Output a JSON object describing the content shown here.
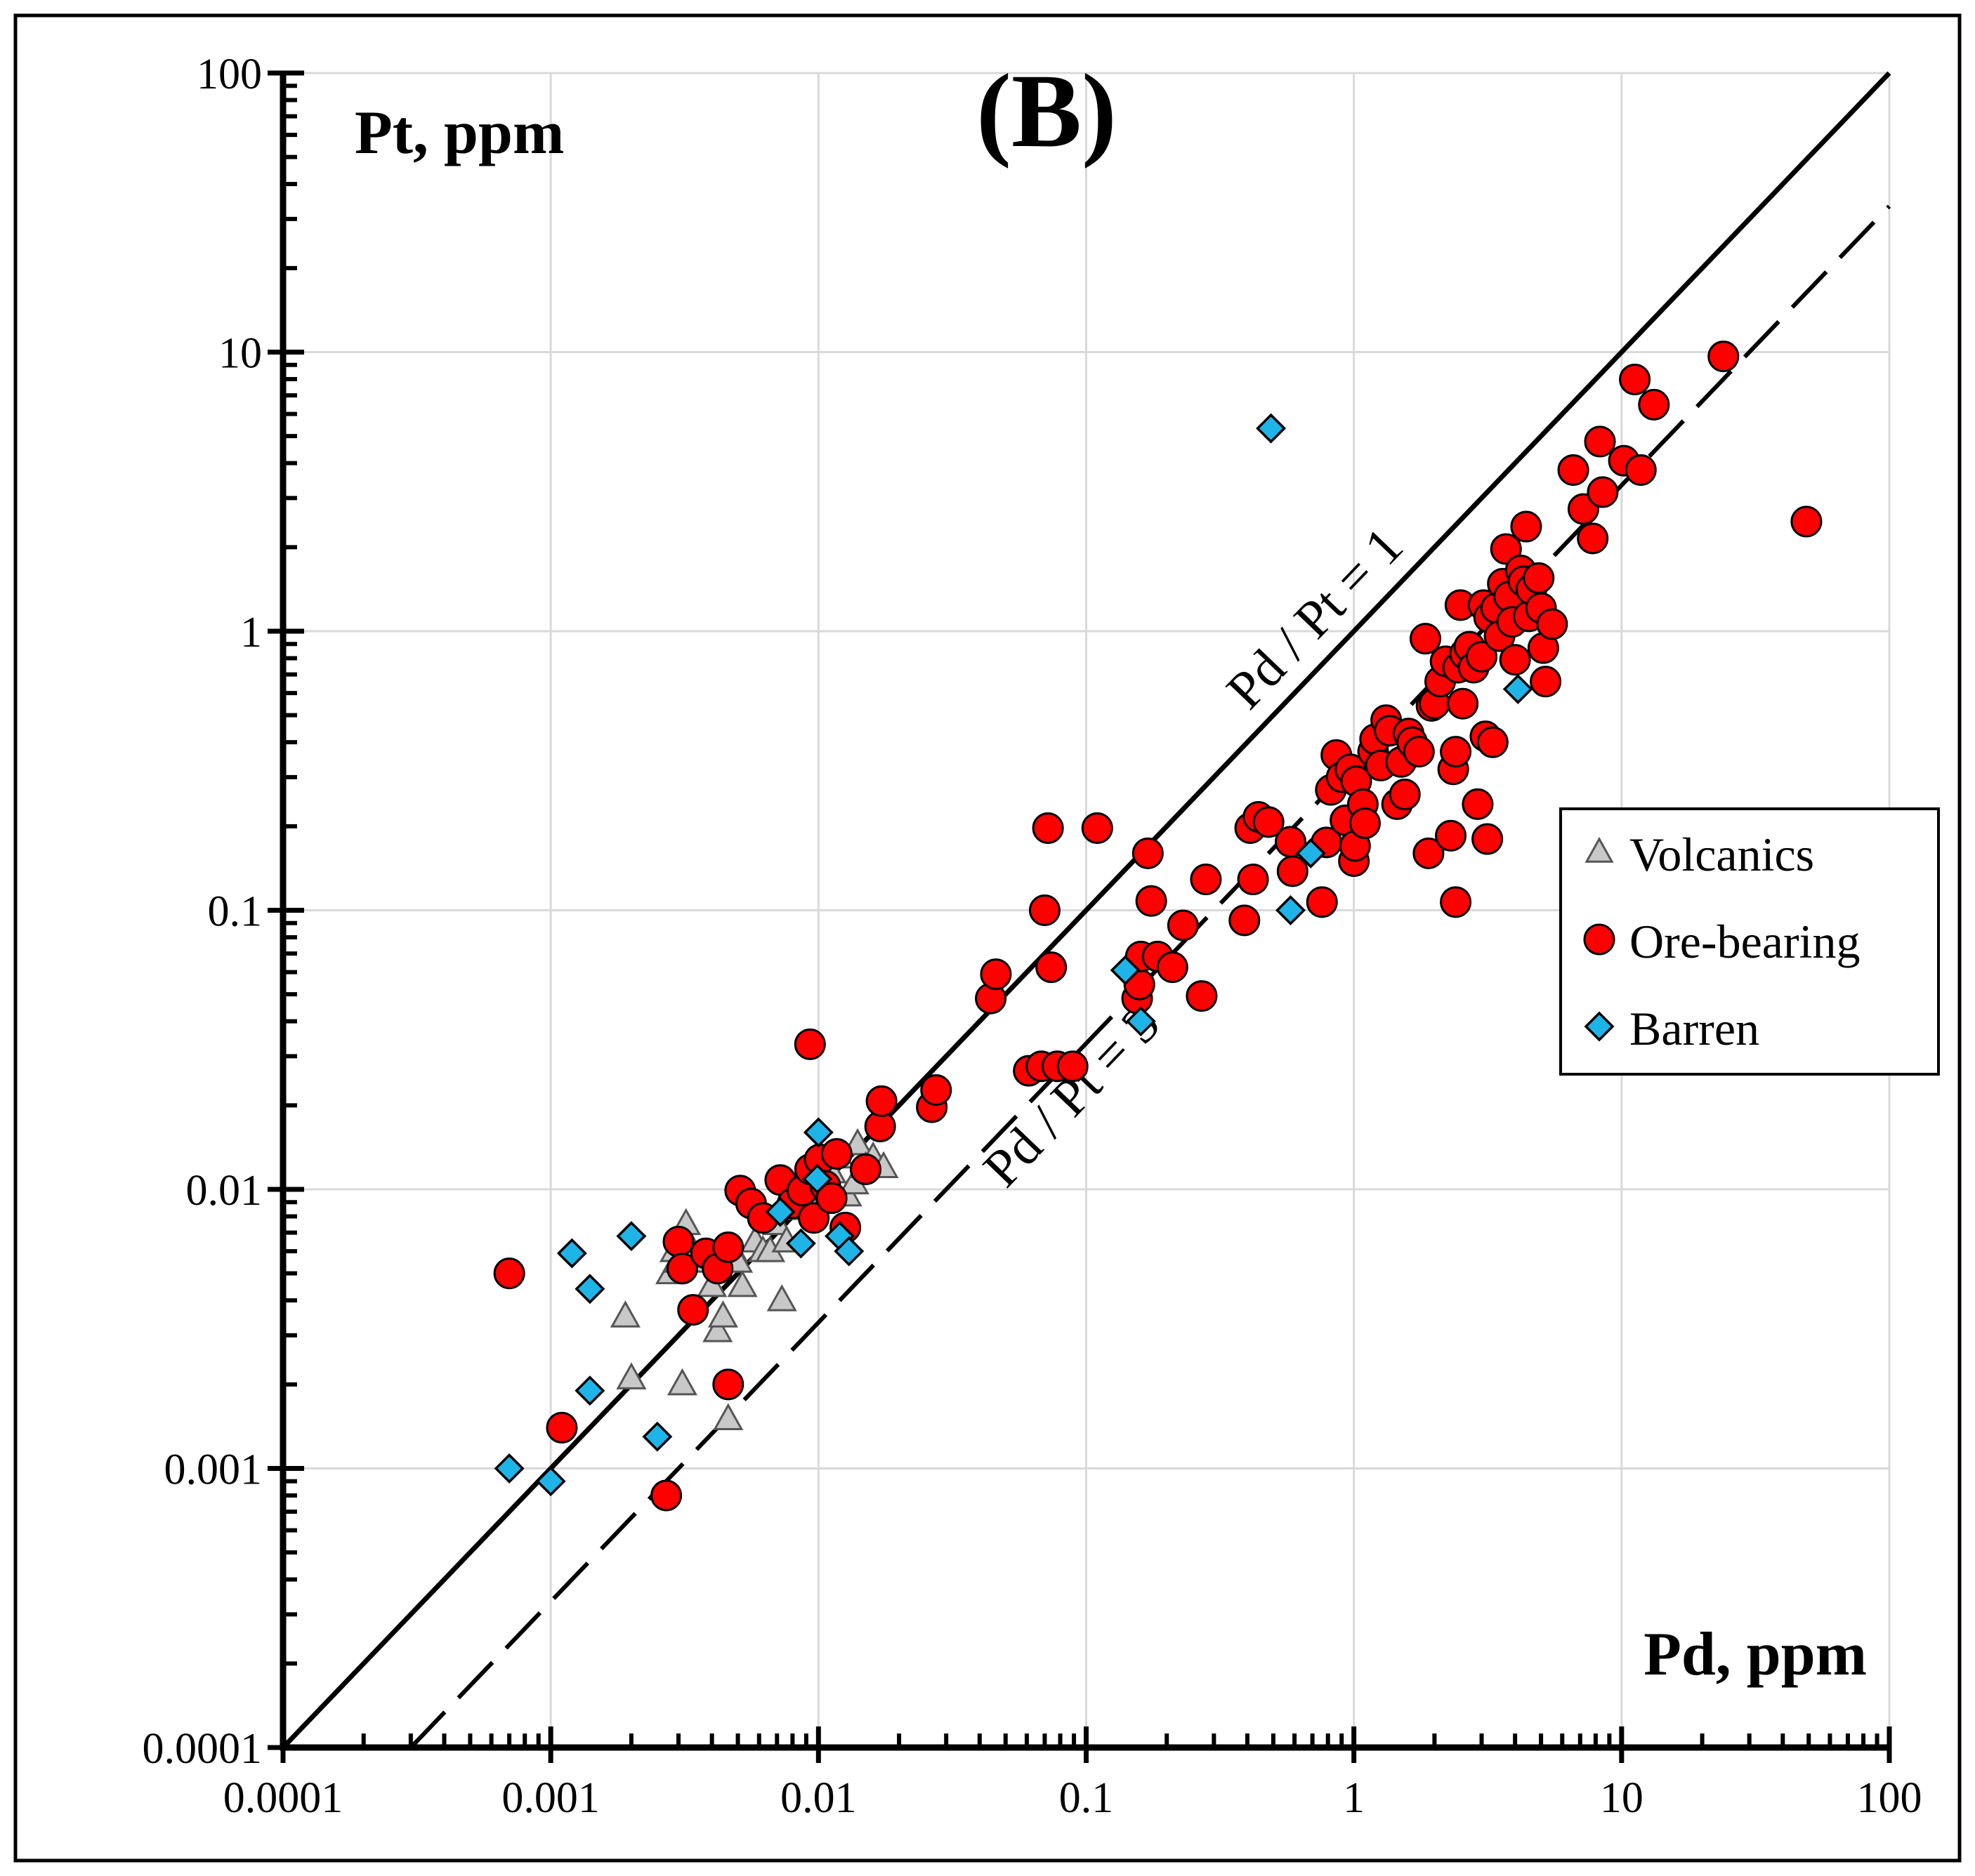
{
  "chart_data": {
    "type": "scatter",
    "panel_label": "(B)",
    "title": "",
    "xlabel": "Pd, ppm",
    "ylabel": "Pt, ppm",
    "xscale": "log",
    "yscale": "log",
    "xlim": [
      0.0001,
      100
    ],
    "ylim": [
      0.0001,
      100
    ],
    "x_ticks": [
      {
        "value": 0.0001,
        "label": "0.0001"
      },
      {
        "value": 0.001,
        "label": "0.001"
      },
      {
        "value": 0.01,
        "label": "0.01"
      },
      {
        "value": 0.1,
        "label": "0.1"
      },
      {
        "value": 1,
        "label": "1"
      },
      {
        "value": 10,
        "label": "10"
      },
      {
        "value": 100,
        "label": "100"
      }
    ],
    "y_ticks": [
      {
        "value": 0.0001,
        "label": "0.0001"
      },
      {
        "value": 0.001,
        "label": "0.001"
      },
      {
        "value": 0.01,
        "label": "0.01"
      },
      {
        "value": 0.1,
        "label": "0.1"
      },
      {
        "value": 1,
        "label": "1"
      },
      {
        "value": 10,
        "label": "10"
      },
      {
        "value": 100,
        "label": "100"
      }
    ],
    "grid": true,
    "legend_position": "right",
    "reference_lines": [
      {
        "name": "pd-pt-1",
        "label": "Pd / Pt = 1",
        "ratio": 1,
        "style": "solid",
        "x_range": [
          0.0001,
          100
        ]
      },
      {
        "name": "pd-pt-3",
        "label": "Pd / Pt = 3",
        "ratio": 3,
        "style": "dashed",
        "x_range": [
          0.0003,
          100
        ]
      }
    ],
    "series": [
      {
        "name": "Volcanics",
        "marker": "triangle",
        "color": "#c8c8c8",
        "points": [
          [
            0.0019,
            0.0035
          ],
          [
            0.002,
            0.0021
          ],
          [
            0.0028,
            0.005
          ],
          [
            0.0029,
            0.006
          ],
          [
            0.003,
            0.0055
          ],
          [
            0.0031,
            0.002
          ],
          [
            0.0032,
            0.0075
          ],
          [
            0.0034,
            0.006
          ],
          [
            0.0036,
            0.0055
          ],
          [
            0.004,
            0.0045
          ],
          [
            0.0042,
            0.0031
          ],
          [
            0.0044,
            0.0035
          ],
          [
            0.0046,
            0.0015
          ],
          [
            0.0048,
            0.006
          ],
          [
            0.005,
            0.0055
          ],
          [
            0.0052,
            0.0045
          ],
          [
            0.0058,
            0.0065
          ],
          [
            0.0062,
            0.006
          ],
          [
            0.0066,
            0.006
          ],
          [
            0.007,
            0.0075
          ],
          [
            0.0073,
            0.004
          ],
          [
            0.0076,
            0.0065
          ],
          [
            0.0078,
            0.0105
          ],
          [
            0.0082,
            0.0085
          ],
          [
            0.0087,
            0.0095
          ],
          [
            0.0092,
            0.009
          ],
          [
            0.0098,
            0.012
          ],
          [
            0.0104,
            0.011
          ],
          [
            0.0112,
            0.0115
          ],
          [
            0.012,
            0.013
          ],
          [
            0.0128,
            0.0095
          ],
          [
            0.0136,
            0.0105
          ],
          [
            0.014,
            0.0145
          ],
          [
            0.015,
            0.012
          ],
          [
            0.016,
            0.013
          ],
          [
            0.0175,
            0.012
          ]
        ]
      },
      {
        "name": "Ore-bearing",
        "marker": "circle",
        "color": "#ff0000",
        "points": [
          [
            0.0007,
            0.005
          ],
          [
            0.0011,
            0.0014
          ],
          [
            0.0027,
            0.0008
          ],
          [
            0.003,
            0.0065
          ],
          [
            0.0031,
            0.0052
          ],
          [
            0.0034,
            0.0037
          ],
          [
            0.0038,
            0.0059
          ],
          [
            0.0042,
            0.0052
          ],
          [
            0.0046,
            0.0062
          ],
          [
            0.0046,
            0.002
          ],
          [
            0.0051,
            0.0099
          ],
          [
            0.0056,
            0.0089
          ],
          [
            0.0062,
            0.0079
          ],
          [
            0.0072,
            0.0108
          ],
          [
            0.008,
            0.0089
          ],
          [
            0.0087,
            0.0099
          ],
          [
            0.0093,
            0.0118
          ],
          [
            0.0096,
            0.0079
          ],
          [
            0.0101,
            0.0128
          ],
          [
            0.0106,
            0.0103
          ],
          [
            0.0112,
            0.0093
          ],
          [
            0.0117,
            0.0134
          ],
          [
            0.0126,
            0.0073
          ],
          [
            0.0093,
            0.0331
          ],
          [
            0.015,
            0.0118
          ],
          [
            0.017,
            0.0168
          ],
          [
            0.0172,
            0.0207
          ],
          [
            0.0265,
            0.0197
          ],
          [
            0.0275,
            0.0227
          ],
          [
            0.044,
            0.0483
          ],
          [
            0.046,
            0.059
          ],
          [
            0.061,
            0.0266
          ],
          [
            0.068,
            0.0276
          ],
          [
            0.07,
            0.1
          ],
          [
            0.072,
            0.197
          ],
          [
            0.074,
            0.0625
          ],
          [
            0.078,
            0.0276
          ],
          [
            0.089,
            0.0276
          ],
          [
            0.11,
            0.197
          ],
          [
            0.155,
            0.0483
          ],
          [
            0.158,
            0.0542
          ],
          [
            0.16,
            0.0683
          ],
          [
            0.17,
            0.16
          ],
          [
            0.175,
            0.108
          ],
          [
            0.185,
            0.0683
          ],
          [
            0.21,
            0.0625
          ],
          [
            0.23,
            0.0883
          ],
          [
            0.27,
            0.0493
          ],
          [
            0.28,
            0.129
          ],
          [
            0.39,
            0.092
          ],
          [
            0.41,
            0.197
          ],
          [
            0.42,
            0.129
          ],
          [
            0.44,
            0.216
          ],
          [
            0.48,
            0.207
          ],
          [
            0.58,
            0.176
          ],
          [
            0.59,
            0.138
          ],
          [
            0.76,
            0.107
          ],
          [
            0.79,
            0.175
          ],
          [
            0.82,
            0.27
          ],
          [
            0.86,
            0.36
          ],
          [
            0.9,
            0.3
          ],
          [
            0.93,
            0.21
          ],
          [
            0.97,
            0.32
          ],
          [
            1.0,
            0.15
          ],
          [
            1.01,
            0.17
          ],
          [
            1.02,
            0.29
          ],
          [
            1.08,
            0.24
          ],
          [
            1.1,
            0.205
          ],
          [
            1.18,
            0.37
          ],
          [
            1.2,
            0.41
          ],
          [
            1.26,
            0.33
          ],
          [
            1.32,
            0.48
          ],
          [
            1.36,
            0.44
          ],
          [
            1.45,
            0.24
          ],
          [
            1.5,
            0.34
          ],
          [
            1.55,
            0.26
          ],
          [
            1.6,
            0.43
          ],
          [
            1.65,
            0.4
          ],
          [
            1.75,
            0.37
          ],
          [
            1.85,
            0.94
          ],
          [
            1.9,
            0.16
          ],
          [
            1.95,
            0.54
          ],
          [
            2.0,
            0.55
          ],
          [
            2.1,
            0.66
          ],
          [
            2.2,
            0.78
          ],
          [
            2.3,
            0.185
          ],
          [
            2.35,
            0.32
          ],
          [
            2.4,
            0.37
          ],
          [
            2.45,
            0.74
          ],
          [
            2.5,
            1.24
          ],
          [
            2.4,
            0.107
          ],
          [
            2.55,
            0.55
          ],
          [
            2.6,
            0.83
          ],
          [
            2.7,
            0.88
          ],
          [
            2.8,
            0.74
          ],
          [
            2.9,
            0.24
          ],
          [
            3.0,
            0.81
          ],
          [
            3.05,
            1.24
          ],
          [
            3.1,
            0.42
          ],
          [
            3.15,
            0.18
          ],
          [
            3.2,
            1.12
          ],
          [
            3.3,
            0.4
          ],
          [
            3.4,
            1.21
          ],
          [
            3.5,
            0.96
          ],
          [
            3.6,
            1.48
          ],
          [
            3.7,
            1.97
          ],
          [
            3.8,
            1.33
          ],
          [
            3.9,
            1.08
          ],
          [
            4.0,
            0.79
          ],
          [
            4.2,
            1.65
          ],
          [
            4.3,
            1.51
          ],
          [
            4.4,
            2.37
          ],
          [
            4.5,
            1.13
          ],
          [
            4.6,
            1.41
          ],
          [
            4.9,
            1.55
          ],
          [
            5.0,
            1.21
          ],
          [
            5.1,
            0.87
          ],
          [
            5.2,
            0.66
          ],
          [
            5.5,
            1.06
          ],
          [
            6.6,
            3.78
          ],
          [
            7.2,
            2.74
          ],
          [
            7.8,
            2.15
          ],
          [
            8.3,
            4.78
          ],
          [
            8.5,
            3.15
          ],
          [
            10.2,
            4.08
          ],
          [
            11.2,
            7.98
          ],
          [
            11.8,
            3.78
          ],
          [
            13.2,
            6.48
          ],
          [
            24.0,
            9.65
          ],
          [
            49.0,
            2.47
          ]
        ]
      },
      {
        "name": "Barren",
        "marker": "diamond",
        "color": "#1fb4e8",
        "points": [
          [
            0.0007,
            0.001
          ],
          [
            0.001,
            0.0009
          ],
          [
            0.0012,
            0.0059
          ],
          [
            0.0014,
            0.0044
          ],
          [
            0.0014,
            0.0019
          ],
          [
            0.002,
            0.0068
          ],
          [
            0.0025,
            0.0013
          ],
          [
            0.0072,
            0.0083
          ],
          [
            0.0086,
            0.0064
          ],
          [
            0.0099,
            0.0109
          ],
          [
            0.01,
            0.016
          ],
          [
            0.012,
            0.0068
          ],
          [
            0.013,
            0.006
          ],
          [
            0.14,
            0.061
          ],
          [
            0.16,
            0.04
          ],
          [
            0.49,
            5.33
          ],
          [
            0.58,
            0.1
          ],
          [
            0.69,
            0.16
          ],
          [
            4.1,
            0.62
          ]
        ]
      }
    ]
  }
}
